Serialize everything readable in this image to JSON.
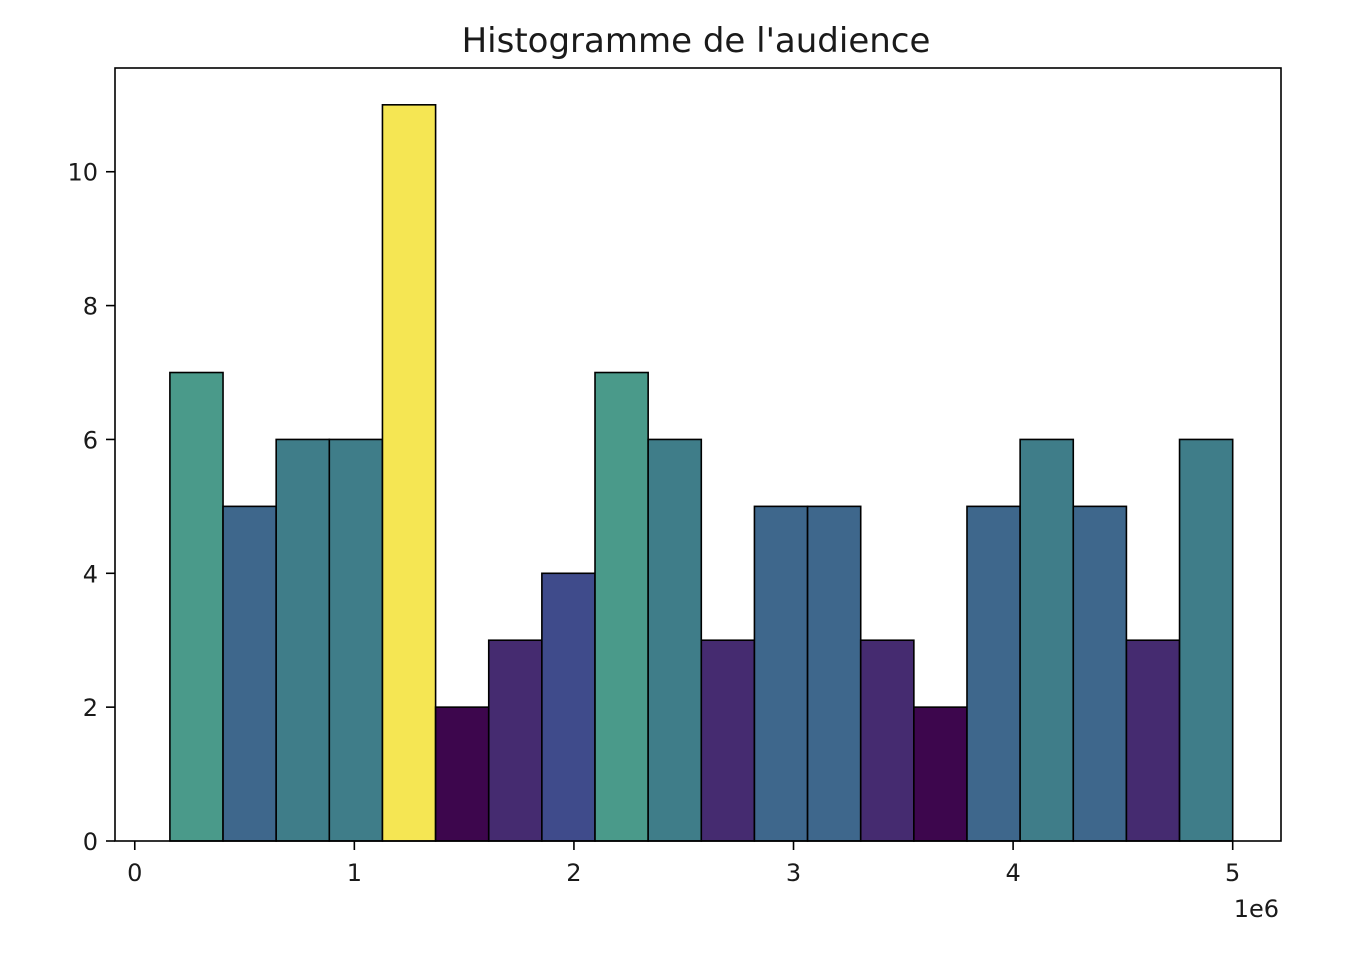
{
  "chart_data": {
    "type": "bar",
    "title": "Histogramme de l'audience",
    "xlabel": "",
    "ylabel": "",
    "x_offset_label": "1e6",
    "x_scale": 1000000,
    "xlim": [
      -90000,
      5220000
    ],
    "ylim": [
      0,
      11.55
    ],
    "x_ticks": [
      0,
      1000000,
      2000000,
      3000000,
      4000000,
      5000000
    ],
    "x_tick_labels": [
      "0",
      "1",
      "2",
      "3",
      "4",
      "5"
    ],
    "y_ticks": [
      0,
      2,
      4,
      6,
      8,
      10
    ],
    "y_tick_labels": [
      "0",
      "2",
      "4",
      "6",
      "8",
      "10"
    ],
    "bin_edges": [
      160000,
      402000,
      644000,
      886000,
      1128000,
      1370000,
      1612000,
      1854000,
      2096000,
      2338000,
      2580000,
      2822000,
      3064000,
      3306000,
      3548000,
      3790000,
      4032000,
      4274000,
      4516000,
      4758000,
      5000000
    ],
    "counts": [
      7,
      5,
      6,
      6,
      11,
      2,
      3,
      4,
      7,
      6,
      3,
      5,
      5,
      3,
      2,
      5,
      6,
      5,
      3,
      6
    ],
    "colormap": "viridis",
    "bar_colors": [
      "#4a9a8a",
      "#3e678c",
      "#3f7d89",
      "#3f7d89",
      "#f5e653",
      "#3d064d",
      "#452b70",
      "#3f4b8b",
      "#4a9a8a",
      "#3f7d89",
      "#452b70",
      "#3e678c",
      "#3e678c",
      "#452b70",
      "#3d064d",
      "#3e678c",
      "#3f7d89",
      "#3e678c",
      "#452b70",
      "#3f7d89"
    ],
    "edge_color": "#000000",
    "grid": false,
    "legend": "none"
  }
}
